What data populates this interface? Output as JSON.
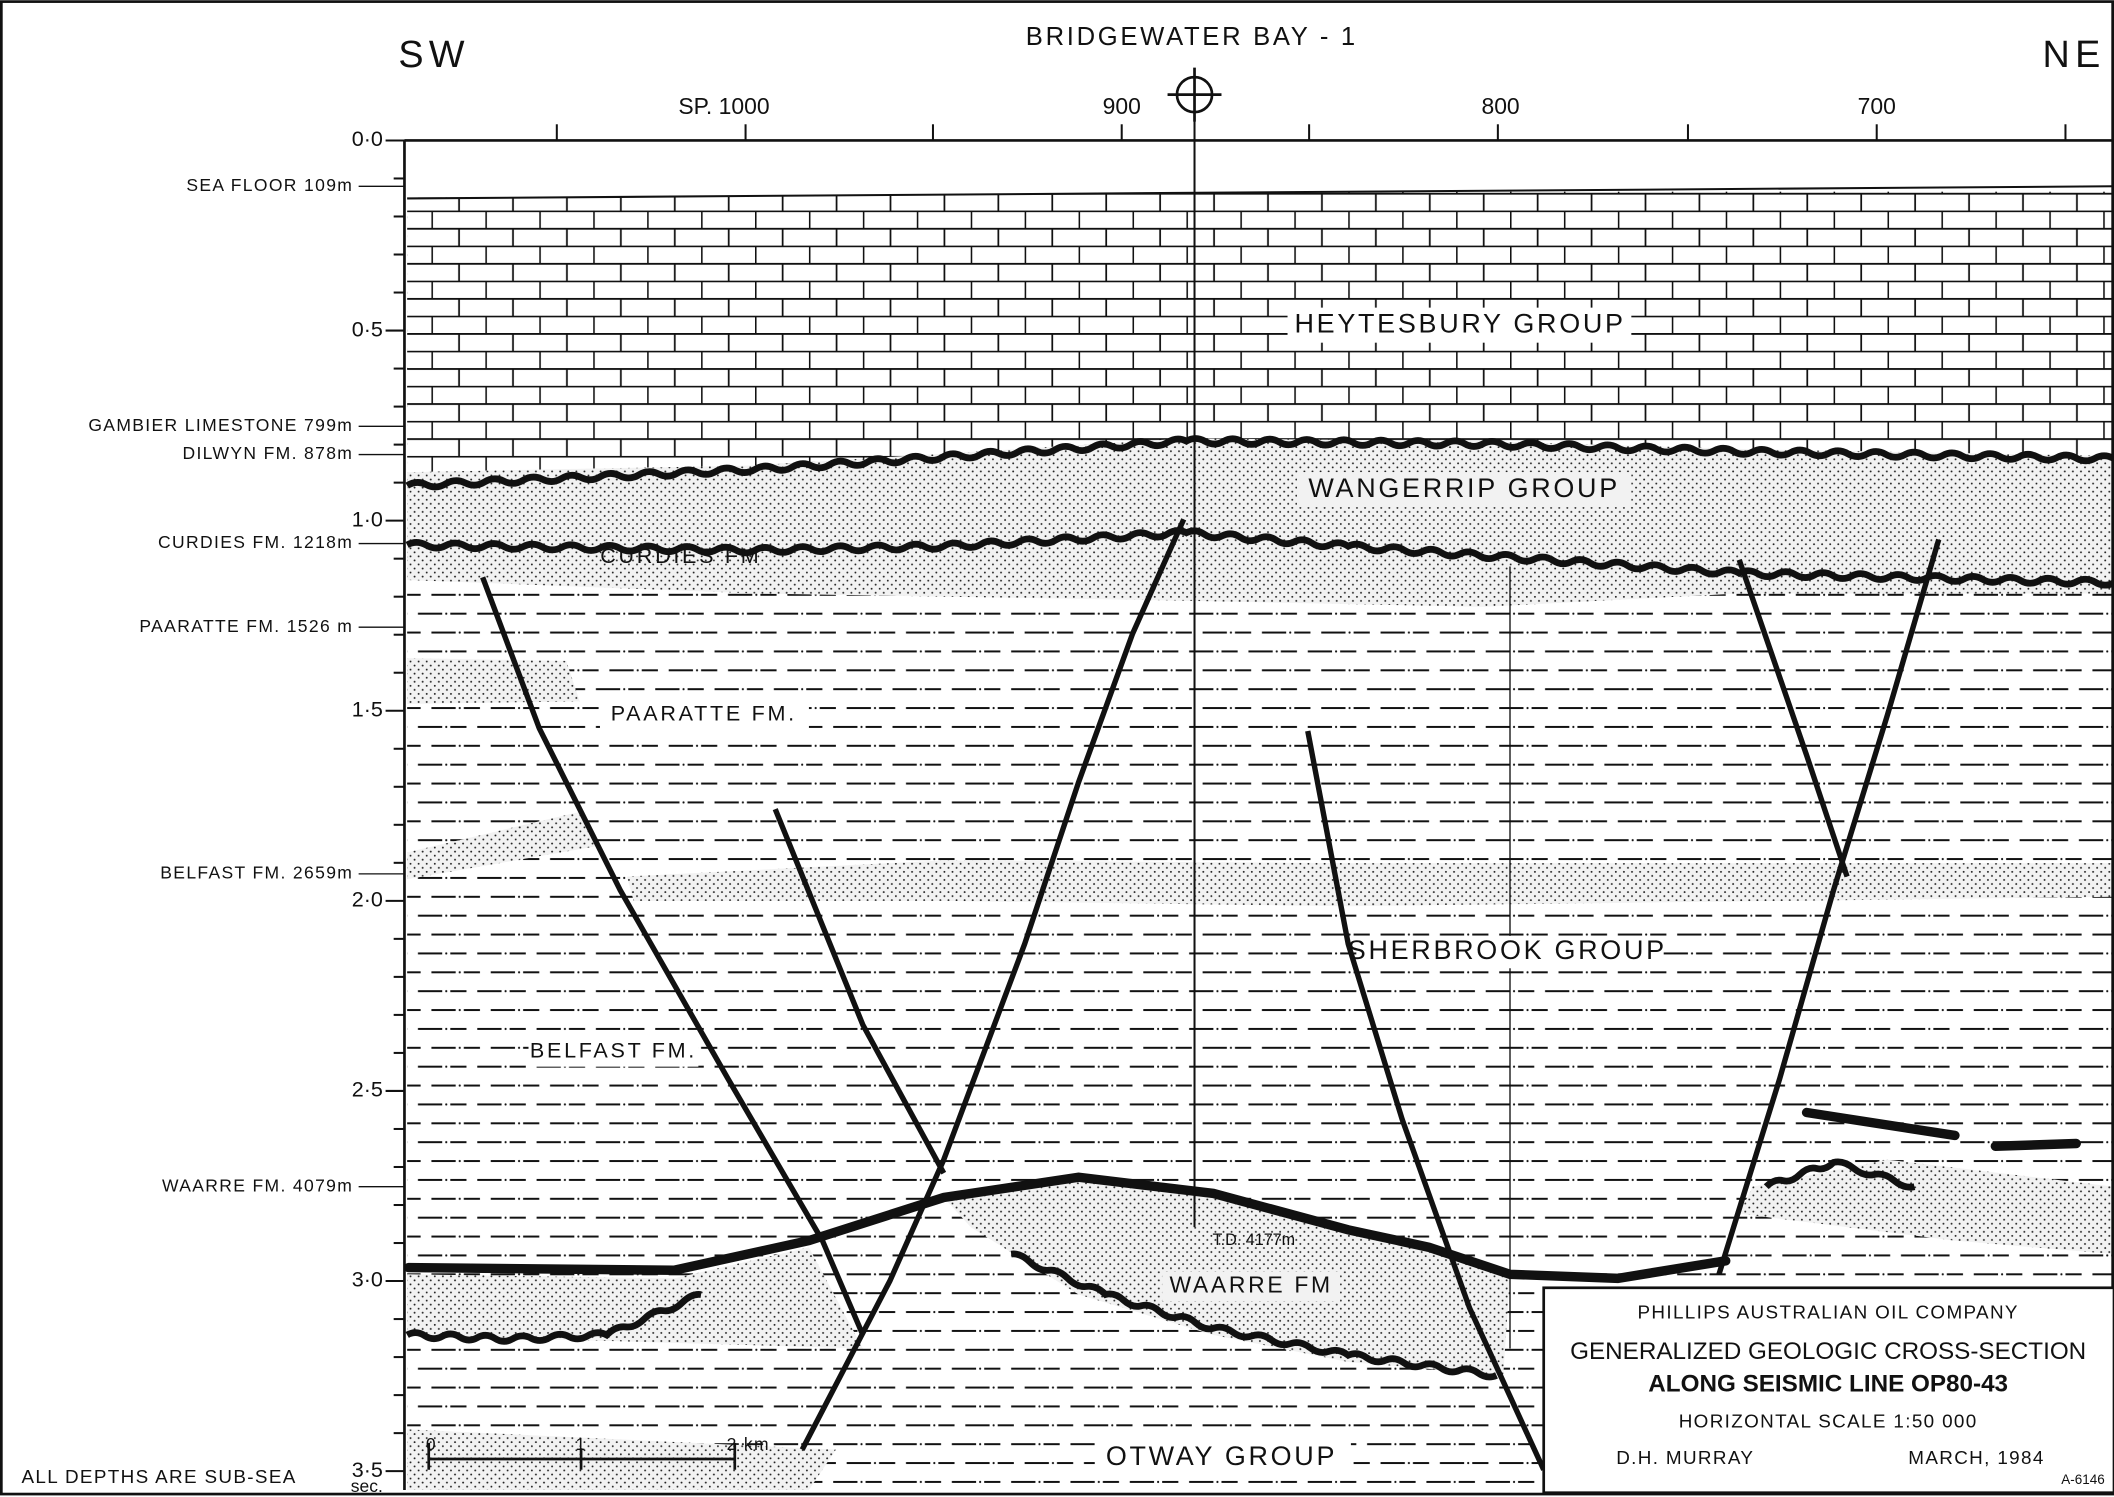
{
  "well": "BRIDGEWATER BAY - 1",
  "directions": {
    "left": "SW",
    "right": "NE"
  },
  "shotpoints": [
    "SP. 1000",
    "900",
    "800",
    "700"
  ],
  "time_axis": {
    "labels": [
      "0·0",
      "0·5",
      "1·0",
      "1·5",
      "2·0",
      "2·5",
      "3·0",
      "3·5"
    ],
    "unit": "sec."
  },
  "depth_markers": [
    "SEA FLOOR 109m",
    "GAMBIER LIMESTONE 799m",
    "DILWYN FM. 878m",
    "CURDIES FM. 1218m",
    "PAARATTE FM. 1526 m",
    "BELFAST FM. 2659m",
    "WAARRE FM. 4079m"
  ],
  "units": [
    "HEYTESBURY GROUP",
    "WANGERRIP GROUP",
    "CURDIES FM",
    "PAARATTE FM.",
    "SHERBROOK GROUP",
    "BELFAST FM.",
    "WAARRE FM",
    "OTWAY GROUP"
  ],
  "total_depth": "T.D. 4177m",
  "scale_bar": [
    "0",
    "1",
    "2 km"
  ],
  "note": "ALL DEPTHS ARE SUB-SEA",
  "title_block": {
    "company": "PHILLIPS AUSTRALIAN OIL COMPANY",
    "title_1": "GENERALIZED GEOLOGIC CROSS-SECTION",
    "title_2": "ALONG SEISMIC LINE OP80-43",
    "scale": "HORIZONTAL SCALE 1:50 000",
    "author": "D.H. MURRAY",
    "date": "MARCH, 1984",
    "ref": "A-6146"
  }
}
